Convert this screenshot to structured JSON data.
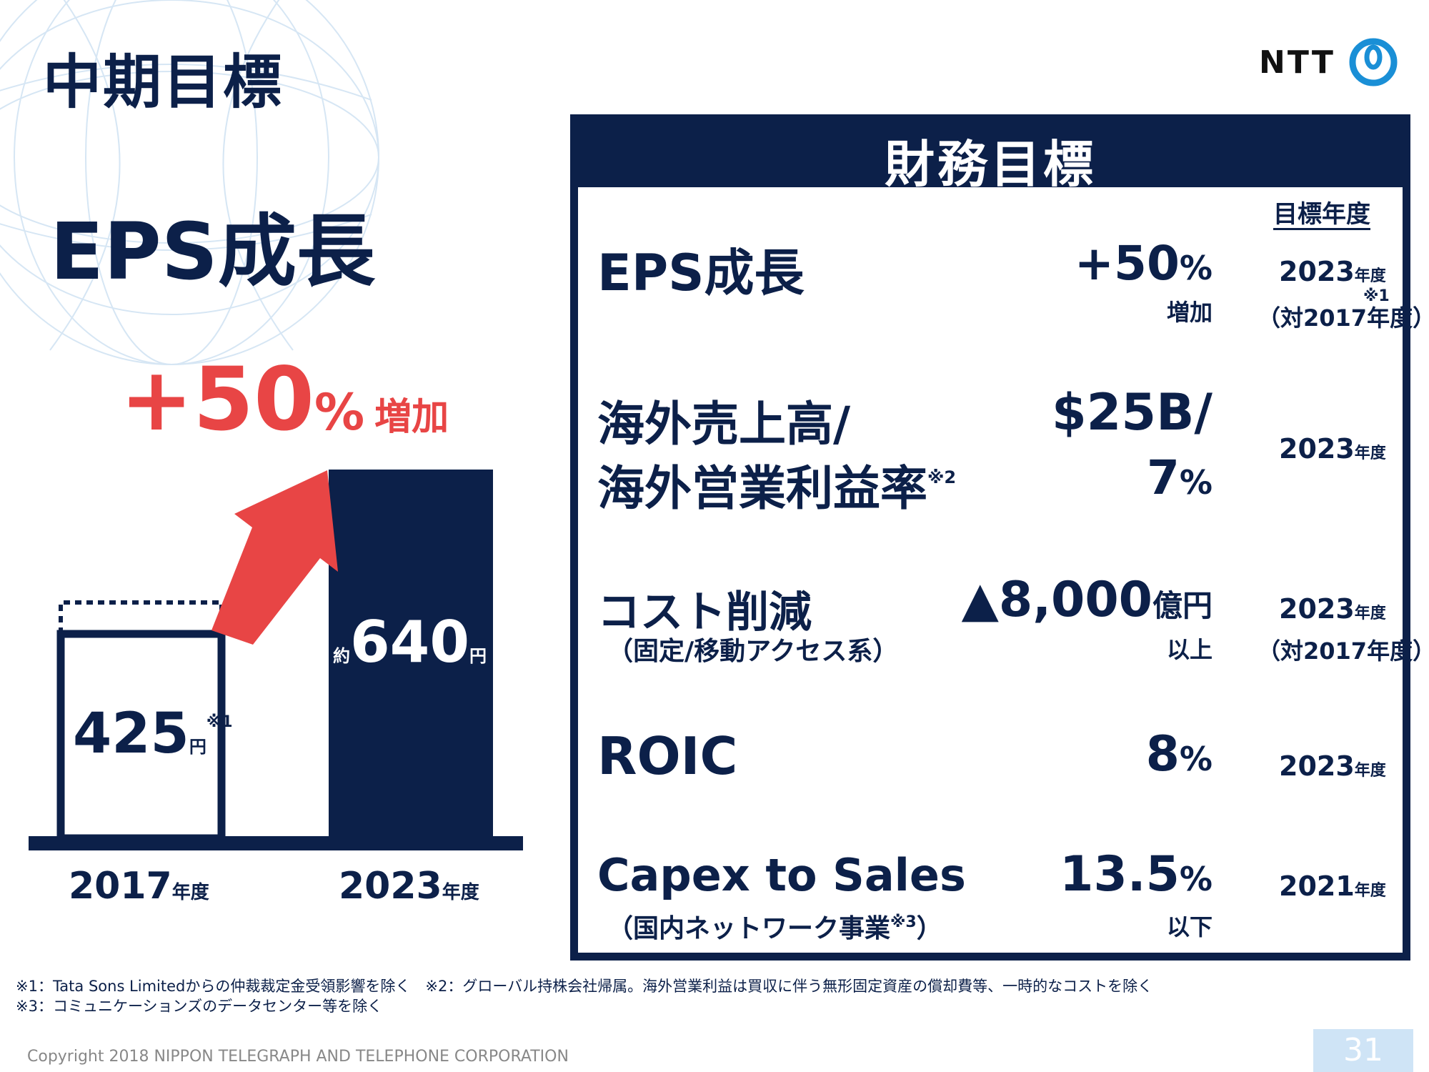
{
  "page_title": "中期目標",
  "logo": {
    "text": "NTT",
    "icon": "ntt-logo-icon"
  },
  "section_title": "EPS成長",
  "growth": {
    "value": "+50",
    "pct": "%",
    "label": "増加"
  },
  "bars": {
    "left": {
      "year": "2017",
      "year_unit": "年度",
      "value": "425",
      "unit": "円",
      "note": "※1"
    },
    "right": {
      "year": "2023",
      "year_unit": "年度",
      "prefix": "約",
      "value": "640",
      "unit": "円"
    }
  },
  "panel": {
    "title": "財務目標",
    "col_header": "目標年度",
    "rows": [
      {
        "label": "EPS成長",
        "value": "+50",
        "value_unit": "%",
        "value_sub": "増加",
        "year": "2023",
        "year_unit": "年度",
        "year_note": "※1",
        "year_sub": "（対2017年度）"
      },
      {
        "label_line1": "海外売上高/",
        "label_line2": "海外営業利益率",
        "label_note": "※2",
        "value_line1": "$25B/",
        "value_line2": "7",
        "value_unit": "%",
        "year": "2023",
        "year_unit": "年度"
      },
      {
        "label": "コスト削減",
        "label_sub": "（固定/移動アクセス系）",
        "value_prefix": "▲",
        "value": "8,000",
        "value_unit": "億円",
        "value_sub": "以上",
        "year": "2023",
        "year_unit": "年度",
        "year_sub": "（対2017年度）"
      },
      {
        "label": "ROIC",
        "value": "8",
        "value_unit": "%",
        "year": "2023",
        "year_unit": "年度"
      },
      {
        "label": "Capex to Sales",
        "label_sub": "（国内ネットワーク事業",
        "label_sub_note": "※3",
        "label_sub_end": "）",
        "value": "13.5",
        "value_unit": "%",
        "value_sub": "以下",
        "year": "2021",
        "year_unit": "年度"
      }
    ]
  },
  "footnotes": [
    "※1：Tata Sons Limitedからの仲裁裁定金受領影響を除く　※2：グローバル持株会社帰属。海外営業利益は買収に伴う無形固定資産の償却費等、一時的なコストを除く",
    "※3：コミュニケーションズのデータセンター等を除く"
  ],
  "copyright": "Copyright 2018 NIPPON TELEGRAPH AND TELEPHONE CORPORATION",
  "page_number": "31",
  "colors": {
    "navy": "#0c2049",
    "accent_red": "#e84545",
    "page_badge": "#cfe4f6"
  }
}
